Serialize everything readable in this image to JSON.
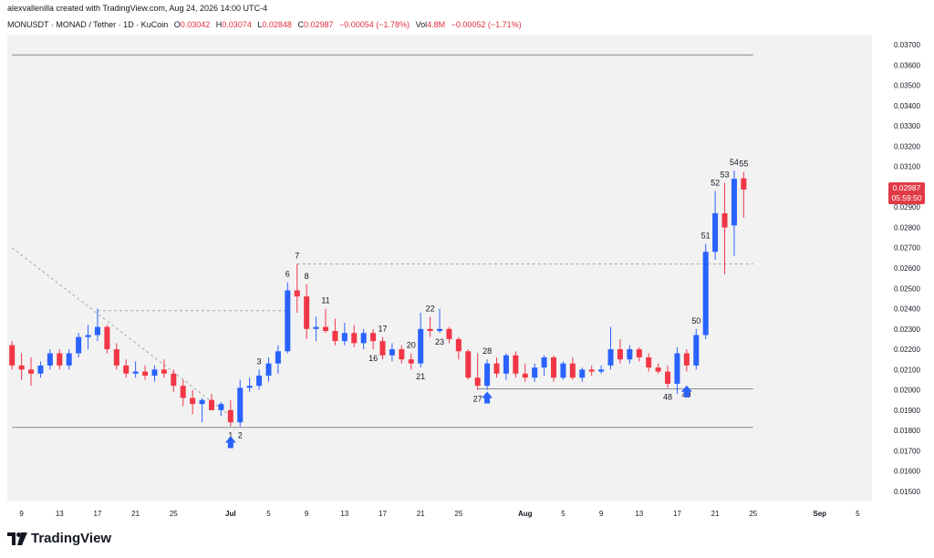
{
  "credit": "alexvallenilla created with TradingView.com, Aug 24, 2026 14:00 UTC-4",
  "legend": {
    "symbol": "MONUSDT · MONAD / Tether · 1D · KuCoin",
    "open_label": "O",
    "open": "0.03042",
    "high_label": "H",
    "high": "0.03074",
    "low_label": "L",
    "low": "0.02848",
    "close_label": "C",
    "close": "0.02987",
    "change": "−0.00054 (−1.78%)",
    "vol_label": "Vol",
    "vol": "4.8M",
    "vol_change": "−0.00052 (−1.71%)"
  },
  "price_tag": {
    "price": "0.02987",
    "countdown": "05:59:50"
  },
  "brand": {
    "name": "TradingView"
  },
  "colors": {
    "up": "#2962ff",
    "down": "#f23645",
    "background": "#f2f2f2",
    "arrow": "#2962ff"
  },
  "chart_data": {
    "type": "candlestick",
    "ylim": [
      0.0145,
      0.0375
    ],
    "y_ticks": [
      "0.03700",
      "0.03600",
      "0.03500",
      "0.03400",
      "0.03300",
      "0.03200",
      "0.03100",
      "0.03000",
      "0.02900",
      "0.02800",
      "0.02700",
      "0.02600",
      "0.02500",
      "0.02400",
      "0.02300",
      "0.02200",
      "0.02100",
      "0.02000",
      "0.01900",
      "0.01800",
      "0.01700",
      "0.01600",
      "0.01500"
    ],
    "x_range": [
      "2026-06-08",
      "2026-09-07"
    ],
    "x_ticks": [
      {
        "date": "2026-06-09",
        "label": "9"
      },
      {
        "date": "2026-06-13",
        "label": "13"
      },
      {
        "date": "2026-06-17",
        "label": "17"
      },
      {
        "date": "2026-06-21",
        "label": "21"
      },
      {
        "date": "2026-06-25",
        "label": "25"
      },
      {
        "date": "2026-07-01",
        "label": "Jul"
      },
      {
        "date": "2026-07-05",
        "label": "5"
      },
      {
        "date": "2026-07-09",
        "label": "9"
      },
      {
        "date": "2026-07-13",
        "label": "13"
      },
      {
        "date": "2026-07-17",
        "label": "17"
      },
      {
        "date": "2026-07-21",
        "label": "21"
      },
      {
        "date": "2026-07-25",
        "label": "25"
      },
      {
        "date": "2026-08-01",
        "label": "Aug"
      },
      {
        "date": "2026-08-05",
        "label": "5"
      },
      {
        "date": "2026-08-09",
        "label": "9"
      },
      {
        "date": "2026-08-13",
        "label": "13"
      },
      {
        "date": "2026-08-17",
        "label": "17"
      },
      {
        "date": "2026-08-21",
        "label": "21"
      },
      {
        "date": "2026-08-25",
        "label": "25"
      },
      {
        "date": "2026-09-01",
        "label": "Sep"
      },
      {
        "date": "2026-09-05",
        "label": "5"
      }
    ],
    "candles": [
      {
        "d": "2026-06-08",
        "o": 0.0222,
        "h": 0.0224,
        "l": 0.021,
        "c": 0.0212
      },
      {
        "d": "2026-06-09",
        "o": 0.0212,
        "h": 0.0218,
        "l": 0.0205,
        "c": 0.021
      },
      {
        "d": "2026-06-10",
        "o": 0.021,
        "h": 0.0216,
        "l": 0.0202,
        "c": 0.0208
      },
      {
        "d": "2026-06-11",
        "o": 0.0208,
        "h": 0.0214,
        "l": 0.0206,
        "c": 0.0212
      },
      {
        "d": "2026-06-12",
        "o": 0.0212,
        "h": 0.022,
        "l": 0.021,
        "c": 0.0218
      },
      {
        "d": "2026-06-13",
        "o": 0.0218,
        "h": 0.022,
        "l": 0.021,
        "c": 0.0212
      },
      {
        "d": "2026-06-14",
        "o": 0.0212,
        "h": 0.022,
        "l": 0.021,
        "c": 0.0218
      },
      {
        "d": "2026-06-15",
        "o": 0.0218,
        "h": 0.0228,
        "l": 0.0216,
        "c": 0.0226
      },
      {
        "d": "2026-06-16",
        "o": 0.0226,
        "h": 0.0232,
        "l": 0.022,
        "c": 0.0227
      },
      {
        "d": "2026-06-17",
        "o": 0.0227,
        "h": 0.024,
        "l": 0.0224,
        "c": 0.0231
      },
      {
        "d": "2026-06-18",
        "o": 0.0231,
        "h": 0.0232,
        "l": 0.0218,
        "c": 0.022
      },
      {
        "d": "2026-06-19",
        "o": 0.022,
        "h": 0.0223,
        "l": 0.021,
        "c": 0.0212
      },
      {
        "d": "2026-06-20",
        "o": 0.0212,
        "h": 0.0215,
        "l": 0.0206,
        "c": 0.0208
      },
      {
        "d": "2026-06-21",
        "o": 0.0208,
        "h": 0.0214,
        "l": 0.0206,
        "c": 0.0209
      },
      {
        "d": "2026-06-22",
        "o": 0.0209,
        "h": 0.0212,
        "l": 0.0205,
        "c": 0.0207
      },
      {
        "d": "2026-06-23",
        "o": 0.0207,
        "h": 0.0212,
        "l": 0.0204,
        "c": 0.021
      },
      {
        "d": "2026-06-24",
        "o": 0.021,
        "h": 0.0215,
        "l": 0.0206,
        "c": 0.0208
      },
      {
        "d": "2026-06-25",
        "o": 0.0208,
        "h": 0.021,
        "l": 0.0199,
        "c": 0.0202
      },
      {
        "d": "2026-06-26",
        "o": 0.0202,
        "h": 0.0205,
        "l": 0.0192,
        "c": 0.0196
      },
      {
        "d": "2026-06-27",
        "o": 0.0196,
        "h": 0.02,
        "l": 0.0188,
        "c": 0.0193
      },
      {
        "d": "2026-06-28",
        "o": 0.0193,
        "h": 0.0196,
        "l": 0.0184,
        "c": 0.0195
      },
      {
        "d": "2026-06-29",
        "o": 0.0195,
        "h": 0.0198,
        "l": 0.019,
        "c": 0.019
      },
      {
        "d": "2026-06-30",
        "o": 0.019,
        "h": 0.0194,
        "l": 0.0187,
        "c": 0.0193
      },
      {
        "d": "2026-07-01",
        "o": 0.019,
        "h": 0.0195,
        "l": 0.0182,
        "c": 0.0184
      },
      {
        "d": "2026-07-02",
        "o": 0.0184,
        "h": 0.0205,
        "l": 0.0182,
        "c": 0.0201
      },
      {
        "d": "2026-07-03",
        "o": 0.0201,
        "h": 0.0206,
        "l": 0.0199,
        "c": 0.0202
      },
      {
        "d": "2026-07-04",
        "o": 0.0202,
        "h": 0.021,
        "l": 0.02,
        "c": 0.0207
      },
      {
        "d": "2026-07-05",
        "o": 0.0207,
        "h": 0.0216,
        "l": 0.0204,
        "c": 0.0213
      },
      {
        "d": "2026-07-06",
        "o": 0.0213,
        "h": 0.0222,
        "l": 0.0208,
        "c": 0.0219
      },
      {
        "d": "2026-07-07",
        "o": 0.0219,
        "h": 0.0253,
        "l": 0.0218,
        "c": 0.0249
      },
      {
        "d": "2026-07-08",
        "o": 0.0249,
        "h": 0.0262,
        "l": 0.0238,
        "c": 0.0246
      },
      {
        "d": "2026-07-09",
        "o": 0.0246,
        "h": 0.0252,
        "l": 0.0225,
        "c": 0.023
      },
      {
        "d": "2026-07-10",
        "o": 0.023,
        "h": 0.0236,
        "l": 0.0224,
        "c": 0.0231
      },
      {
        "d": "2026-07-11",
        "o": 0.0231,
        "h": 0.024,
        "l": 0.0228,
        "c": 0.0229
      },
      {
        "d": "2026-07-12",
        "o": 0.0229,
        "h": 0.0235,
        "l": 0.0222,
        "c": 0.0224
      },
      {
        "d": "2026-07-13",
        "o": 0.0224,
        "h": 0.0233,
        "l": 0.0222,
        "c": 0.0228
      },
      {
        "d": "2026-07-14",
        "o": 0.0228,
        "h": 0.0232,
        "l": 0.0221,
        "c": 0.0223
      },
      {
        "d": "2026-07-15",
        "o": 0.0223,
        "h": 0.023,
        "l": 0.022,
        "c": 0.0228
      },
      {
        "d": "2026-07-16",
        "o": 0.0228,
        "h": 0.023,
        "l": 0.022,
        "c": 0.0224
      },
      {
        "d": "2026-07-17",
        "o": 0.0224,
        "h": 0.0226,
        "l": 0.0215,
        "c": 0.0217
      },
      {
        "d": "2026-07-18",
        "o": 0.0217,
        "h": 0.0223,
        "l": 0.0214,
        "c": 0.022
      },
      {
        "d": "2026-07-19",
        "o": 0.022,
        "h": 0.0222,
        "l": 0.0213,
        "c": 0.0215
      },
      {
        "d": "2026-07-20",
        "o": 0.0215,
        "h": 0.0218,
        "l": 0.021,
        "c": 0.0213
      },
      {
        "d": "2026-07-21",
        "o": 0.0213,
        "h": 0.0238,
        "l": 0.0211,
        "c": 0.023
      },
      {
        "d": "2026-07-22",
        "o": 0.023,
        "h": 0.0236,
        "l": 0.0226,
        "c": 0.0229
      },
      {
        "d": "2026-07-23",
        "o": 0.0229,
        "h": 0.024,
        "l": 0.0228,
        "c": 0.023
      },
      {
        "d": "2026-07-24",
        "o": 0.023,
        "h": 0.0231,
        "l": 0.0223,
        "c": 0.0225
      },
      {
        "d": "2026-07-25",
        "o": 0.0225,
        "h": 0.0226,
        "l": 0.0215,
        "c": 0.0219
      },
      {
        "d": "2026-07-26",
        "o": 0.0219,
        "h": 0.022,
        "l": 0.0205,
        "c": 0.0206
      },
      {
        "d": "2026-07-27",
        "o": 0.0206,
        "h": 0.0218,
        "l": 0.02,
        "c": 0.0202
      },
      {
        "d": "2026-07-28",
        "o": 0.0202,
        "h": 0.0215,
        "l": 0.02,
        "c": 0.0213
      },
      {
        "d": "2026-07-29",
        "o": 0.0213,
        "h": 0.0216,
        "l": 0.0206,
        "c": 0.0208
      },
      {
        "d": "2026-07-30",
        "o": 0.0208,
        "h": 0.0218,
        "l": 0.0205,
        "c": 0.0217
      },
      {
        "d": "2026-07-31",
        "o": 0.0217,
        "h": 0.0219,
        "l": 0.0206,
        "c": 0.0208
      },
      {
        "d": "2026-08-01",
        "o": 0.0208,
        "h": 0.0213,
        "l": 0.0204,
        "c": 0.0206
      },
      {
        "d": "2026-08-02",
        "o": 0.0206,
        "h": 0.0213,
        "l": 0.0204,
        "c": 0.0211
      },
      {
        "d": "2026-08-03",
        "o": 0.0211,
        "h": 0.0217,
        "l": 0.0207,
        "c": 0.0216
      },
      {
        "d": "2026-08-04",
        "o": 0.0216,
        "h": 0.0217,
        "l": 0.0204,
        "c": 0.0206
      },
      {
        "d": "2026-08-05",
        "o": 0.0206,
        "h": 0.0214,
        "l": 0.0205,
        "c": 0.0213
      },
      {
        "d": "2026-08-06",
        "o": 0.0213,
        "h": 0.0216,
        "l": 0.0205,
        "c": 0.0206
      },
      {
        "d": "2026-08-07",
        "o": 0.0206,
        "h": 0.0211,
        "l": 0.0204,
        "c": 0.021
      },
      {
        "d": "2026-08-08",
        "o": 0.021,
        "h": 0.0212,
        "l": 0.0207,
        "c": 0.0209
      },
      {
        "d": "2026-08-09",
        "o": 0.0209,
        "h": 0.0212,
        "l": 0.0208,
        "c": 0.021
      },
      {
        "d": "2026-08-10",
        "o": 0.0212,
        "h": 0.0231,
        "l": 0.021,
        "c": 0.022
      },
      {
        "d": "2026-08-11",
        "o": 0.022,
        "h": 0.0225,
        "l": 0.0213,
        "c": 0.0215
      },
      {
        "d": "2026-08-12",
        "o": 0.0215,
        "h": 0.0222,
        "l": 0.0213,
        "c": 0.022
      },
      {
        "d": "2026-08-13",
        "o": 0.022,
        "h": 0.0221,
        "l": 0.0214,
        "c": 0.0216
      },
      {
        "d": "2026-08-14",
        "o": 0.0216,
        "h": 0.0218,
        "l": 0.0209,
        "c": 0.0211
      },
      {
        "d": "2026-08-15",
        "o": 0.0211,
        "h": 0.0213,
        "l": 0.0208,
        "c": 0.0209
      },
      {
        "d": "2026-08-16",
        "o": 0.0209,
        "h": 0.0212,
        "l": 0.0201,
        "c": 0.0203
      },
      {
        "d": "2026-08-17",
        "o": 0.0203,
        "h": 0.0221,
        "l": 0.0198,
        "c": 0.0218
      },
      {
        "d": "2026-08-18",
        "o": 0.0218,
        "h": 0.022,
        "l": 0.0209,
        "c": 0.0212
      },
      {
        "d": "2026-08-19",
        "o": 0.0212,
        "h": 0.023,
        "l": 0.021,
        "c": 0.0227
      },
      {
        "d": "2026-08-20",
        "o": 0.0227,
        "h": 0.0272,
        "l": 0.0225,
        "c": 0.0268
      },
      {
        "d": "2026-08-21",
        "o": 0.0268,
        "h": 0.0298,
        "l": 0.0264,
        "c": 0.0287
      },
      {
        "d": "2026-08-22",
        "o": 0.0287,
        "h": 0.0302,
        "l": 0.0257,
        "c": 0.028
      },
      {
        "d": "2026-08-23",
        "o": 0.0281,
        "h": 0.0308,
        "l": 0.0266,
        "c": 0.0304
      },
      {
        "d": "2026-08-24",
        "o": 0.03042,
        "h": 0.03074,
        "l": 0.02848,
        "c": 0.02987
      }
    ],
    "annotations": [
      {
        "d": "2026-07-01",
        "text": "1",
        "pos": "below"
      },
      {
        "d": "2026-07-02",
        "text": "2",
        "pos": "below"
      },
      {
        "d": "2026-07-04",
        "text": "3",
        "pos": "above"
      },
      {
        "d": "2026-07-07",
        "text": "6",
        "pos": "above"
      },
      {
        "d": "2026-07-08",
        "text": "7",
        "pos": "above"
      },
      {
        "d": "2026-07-09",
        "text": "8",
        "pos": "above"
      },
      {
        "d": "2026-07-11",
        "text": "11",
        "pos": "above"
      },
      {
        "d": "2026-07-16",
        "text": "16",
        "pos": "below"
      },
      {
        "d": "2026-07-17",
        "text": "17",
        "pos": "above"
      },
      {
        "d": "2026-07-20",
        "text": "20",
        "pos": "above"
      },
      {
        "d": "2026-07-21",
        "text": "21",
        "pos": "below"
      },
      {
        "d": "2026-07-22",
        "text": "22",
        "pos": "above"
      },
      {
        "d": "2026-07-23",
        "text": "23",
        "pos": "below"
      },
      {
        "d": "2026-07-27",
        "text": "27",
        "pos": "below"
      },
      {
        "d": "2026-07-28",
        "text": "28",
        "pos": "above"
      },
      {
        "d": "2026-08-16",
        "text": "48",
        "pos": "below"
      },
      {
        "d": "2026-08-17",
        "text": "49",
        "pos": "right"
      },
      {
        "d": "2026-08-19",
        "text": "50",
        "pos": "above"
      },
      {
        "d": "2026-08-20",
        "text": "51",
        "pos": "above"
      },
      {
        "d": "2026-08-21",
        "text": "52",
        "pos": "above"
      },
      {
        "d": "2026-08-22",
        "text": "53",
        "pos": "above"
      },
      {
        "d": "2026-08-23",
        "text": "54",
        "pos": "above"
      },
      {
        "d": "2026-08-24",
        "text": "55",
        "pos": "above"
      }
    ],
    "arrows": [
      {
        "d": "2026-07-01",
        "price": 0.0174
      },
      {
        "d": "2026-07-28",
        "price": 0.0196
      },
      {
        "d": "2026-08-18",
        "price": 0.0199
      }
    ],
    "lines": [
      {
        "kind": "horizontal",
        "price": 0.0365,
        "from": "2026-06-08",
        "to": "2026-08-25",
        "style": "solid"
      },
      {
        "kind": "horizontal",
        "price": 0.01815,
        "from": "2026-06-08",
        "to": "2026-08-25",
        "style": "solid"
      },
      {
        "kind": "horizontal",
        "price": 0.02005,
        "from": "2026-07-27",
        "to": "2026-08-25",
        "style": "solid"
      },
      {
        "kind": "horizontal",
        "price": 0.0239,
        "from": "2026-06-17",
        "to": "2026-07-07",
        "style": "dashed"
      },
      {
        "kind": "horizontal",
        "price": 0.0262,
        "from": "2026-07-08",
        "to": "2026-08-25",
        "style": "dashed"
      },
      {
        "kind": "trend",
        "from": {
          "d": "2026-06-08",
          "price": 0.027
        },
        "to": {
          "d": "2026-07-01",
          "price": 0.0187
        },
        "style": "dashed"
      }
    ],
    "last_price": 0.02987
  }
}
